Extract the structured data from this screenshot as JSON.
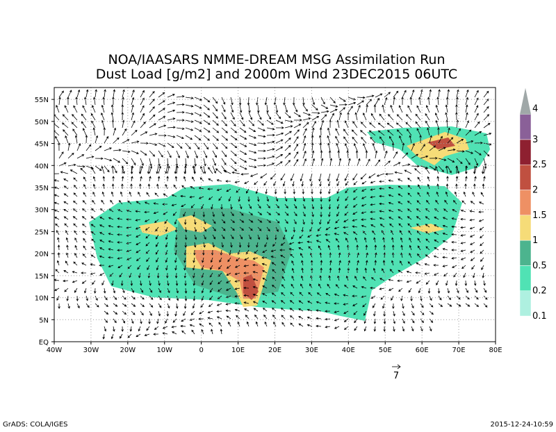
{
  "header": {
    "title": "NOA/IAASARS NMME-DREAM MSG Assimilation Run",
    "subtitle": "Dust Load [g/m2] and 2000m Wind 23DEC2015 06UTC"
  },
  "map": {
    "lonlim": [
      -40,
      80
    ],
    "latlim": [
      0,
      57.7
    ],
    "lat_ticks": [
      {
        "value": 55,
        "label": "55N"
      },
      {
        "value": 50,
        "label": "50N"
      },
      {
        "value": 45,
        "label": "45N"
      },
      {
        "value": 40,
        "label": "40N"
      },
      {
        "value": 35,
        "label": "35N"
      },
      {
        "value": 30,
        "label": "30N"
      },
      {
        "value": 25,
        "label": "25N"
      },
      {
        "value": 20,
        "label": "20N"
      },
      {
        "value": 15,
        "label": "15N"
      },
      {
        "value": 10,
        "label": "10N"
      },
      {
        "value": 5,
        "label": "5N"
      },
      {
        "value": 0,
        "label": "EQ"
      }
    ],
    "lon_ticks": [
      {
        "value": -40,
        "label": "40W"
      },
      {
        "value": -30,
        "label": "30W"
      },
      {
        "value": -20,
        "label": "20W"
      },
      {
        "value": -10,
        "label": "10W"
      },
      {
        "value": 0,
        "label": "0"
      },
      {
        "value": 10,
        "label": "10E"
      },
      {
        "value": 20,
        "label": "20E"
      },
      {
        "value": 30,
        "label": "30E"
      },
      {
        "value": 40,
        "label": "40E"
      },
      {
        "value": 50,
        "label": "50E"
      },
      {
        "value": 60,
        "label": "60E"
      },
      {
        "value": 70,
        "label": "70E"
      },
      {
        "value": 80,
        "label": "80E"
      }
    ],
    "reference_vector": "7"
  },
  "colorbar": {
    "labels": [
      "0.1",
      "0.2",
      "0.5",
      "1",
      "1.5",
      "2",
      "2.5",
      "3",
      "4"
    ],
    "colors": [
      "#aef0e0",
      "#50e2b4",
      "#4cb48e",
      "#f6dc78",
      "#ee9064",
      "#c05040",
      "#8e2030",
      "#8a6098",
      "#a0a8a8"
    ]
  },
  "footer": {
    "left": "GrADS: COLA/IGES",
    "right": "2015-12-24-10:59"
  }
}
